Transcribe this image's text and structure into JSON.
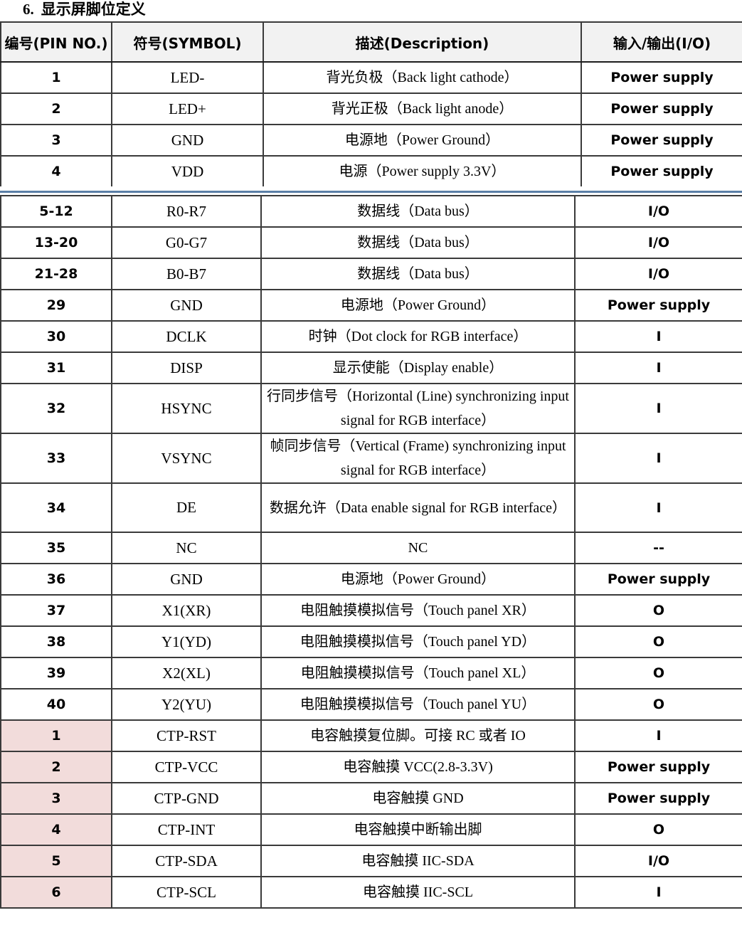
{
  "section": {
    "number": "6.",
    "title": "显示屏脚位定义"
  },
  "headers": {
    "pin": "编号(PIN NO.)",
    "symbol": "符号(SYMBOL)",
    "description": "描述(Description)",
    "io": "输入/输出(I/O)"
  },
  "rows_top": [
    {
      "pin": "1",
      "symbol": "LED-",
      "description": "背光负极（Back light cathode）",
      "io": "Power supply"
    },
    {
      "pin": "2",
      "symbol": "LED+",
      "description": "背光正极（Back light anode）",
      "io": "Power supply"
    },
    {
      "pin": "3",
      "symbol": "GND",
      "description": "电源地（Power Ground）",
      "io": "Power supply"
    },
    {
      "pin": "4",
      "symbol": "VDD",
      "description": "电源（Power supply 3.3V）",
      "io": "Power supply"
    }
  ],
  "rows_bottom": [
    {
      "pin": "5-12",
      "symbol": "R0-R7",
      "description": "数据线（Data bus）",
      "io": "I/O"
    },
    {
      "pin": "13-20",
      "symbol": "G0-G7",
      "description": "数据线（Data bus）",
      "io": "I/O"
    },
    {
      "pin": "21-28",
      "symbol": "B0-B7",
      "description": "数据线（Data bus）",
      "io": "I/O"
    },
    {
      "pin": "29",
      "symbol": "GND",
      "description": "电源地（Power Ground）",
      "io": "Power supply"
    },
    {
      "pin": "30",
      "symbol": "DCLK",
      "description": "时钟（Dot clock for RGB interface）",
      "io": "I"
    },
    {
      "pin": "31",
      "symbol": "DISP",
      "description": "显示使能（Display enable）",
      "io": "I"
    },
    {
      "pin": "32",
      "symbol": "HSYNC",
      "description": "行同步信号（Horizontal (Line) synchronizing input signal for RGB interface）",
      "io": "I"
    },
    {
      "pin": "33",
      "symbol": "VSYNC",
      "description": "帧同步信号（Vertical (Frame) synchronizing input signal for RGB interface）",
      "io": "I"
    },
    {
      "pin": "34",
      "symbol": "DE",
      "description": "数据允许（Data enable signal for RGB interface）",
      "io": "I"
    },
    {
      "pin": "35",
      "symbol": "NC",
      "description": "NC",
      "io": "--"
    },
    {
      "pin": "36",
      "symbol": "GND",
      "description": "电源地（Power Ground）",
      "io": "Power supply"
    },
    {
      "pin": "37",
      "symbol": "X1(XR)",
      "description": "电阻触摸模拟信号（Touch panel XR）",
      "io": "O"
    },
    {
      "pin": "38",
      "symbol": "Y1(YD)",
      "description": "电阻触摸模拟信号（Touch panel YD）",
      "io": "O"
    },
    {
      "pin": "39",
      "symbol": "X2(XL)",
      "description": "电阻触摸模拟信号（Touch panel XL）",
      "io": "O"
    },
    {
      "pin": "40",
      "symbol": "Y2(YU)",
      "description": "电阻触摸模拟信号（Touch panel YU）",
      "io": "O"
    }
  ],
  "rows_ctp": [
    {
      "pin": "1",
      "symbol": "CTP-RST",
      "description": "电容触摸复位脚。可接 RC 或者 IO",
      "io": "I"
    },
    {
      "pin": "2",
      "symbol": "CTP-VCC",
      "description": "电容触摸 VCC(2.8-3.3V)",
      "io": "Power supply"
    },
    {
      "pin": "3",
      "symbol": "CTP-GND",
      "description": "电容触摸 GND",
      "io": "Power supply"
    },
    {
      "pin": "4",
      "symbol": "CTP-INT",
      "description": "电容触摸中断输出脚",
      "io": "O"
    },
    {
      "pin": "5",
      "symbol": "CTP-SDA",
      "description": "电容触摸 IIC-SDA",
      "io": "I/O"
    },
    {
      "pin": "6",
      "symbol": "CTP-SCL",
      "description": "电容触摸 IIC-SCL",
      "io": "I"
    }
  ],
  "colors": {
    "ctp_pin_highlight": "#f2dcdb",
    "header_background": "#f2f2f2",
    "separator": "#5a7fa6"
  }
}
